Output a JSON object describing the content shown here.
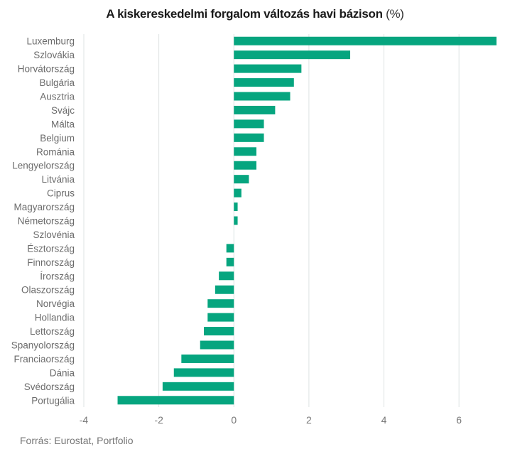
{
  "chart_data": {
    "type": "bar",
    "orientation": "horizontal",
    "title": "A kiskereskedelmi forgalom változás havi bázison",
    "title_unit": "(%)",
    "xlabel": "",
    "ylabel": "",
    "xlim": [
      -4,
      7
    ],
    "xticks": [
      -4,
      -2,
      0,
      2,
      4,
      6
    ],
    "xtick_labels": [
      "-4",
      "-2",
      "0",
      "2",
      "4",
      "6"
    ],
    "grid": true,
    "bar_color": "#06a57f",
    "categories": [
      "Luxemburg",
      "Szlovákia",
      "Horvátország",
      "Bulgária",
      "Ausztria",
      "Svájc",
      "Málta",
      "Belgium",
      "Románia",
      "Lengyelország",
      "Litvánia",
      "Ciprus",
      "Magyarország",
      "Németország",
      "Szlovénia",
      "Észtország",
      "Finnország",
      "Írország",
      "Olaszország",
      "Norvégia",
      "Hollandia",
      "Lettország",
      "Spanyolország",
      "Franciaország",
      "Dánia",
      "Svédország",
      "Portugália"
    ],
    "values": [
      7.0,
      3.1,
      1.8,
      1.6,
      1.5,
      1.1,
      0.8,
      0.8,
      0.6,
      0.6,
      0.4,
      0.2,
      0.1,
      0.1,
      0.0,
      -0.2,
      -0.2,
      -0.4,
      -0.5,
      -0.7,
      -0.7,
      -0.8,
      -0.9,
      -1.4,
      -1.6,
      -1.9,
      -3.1
    ]
  },
  "source": "Forrás: Eurostat, Portfolio"
}
